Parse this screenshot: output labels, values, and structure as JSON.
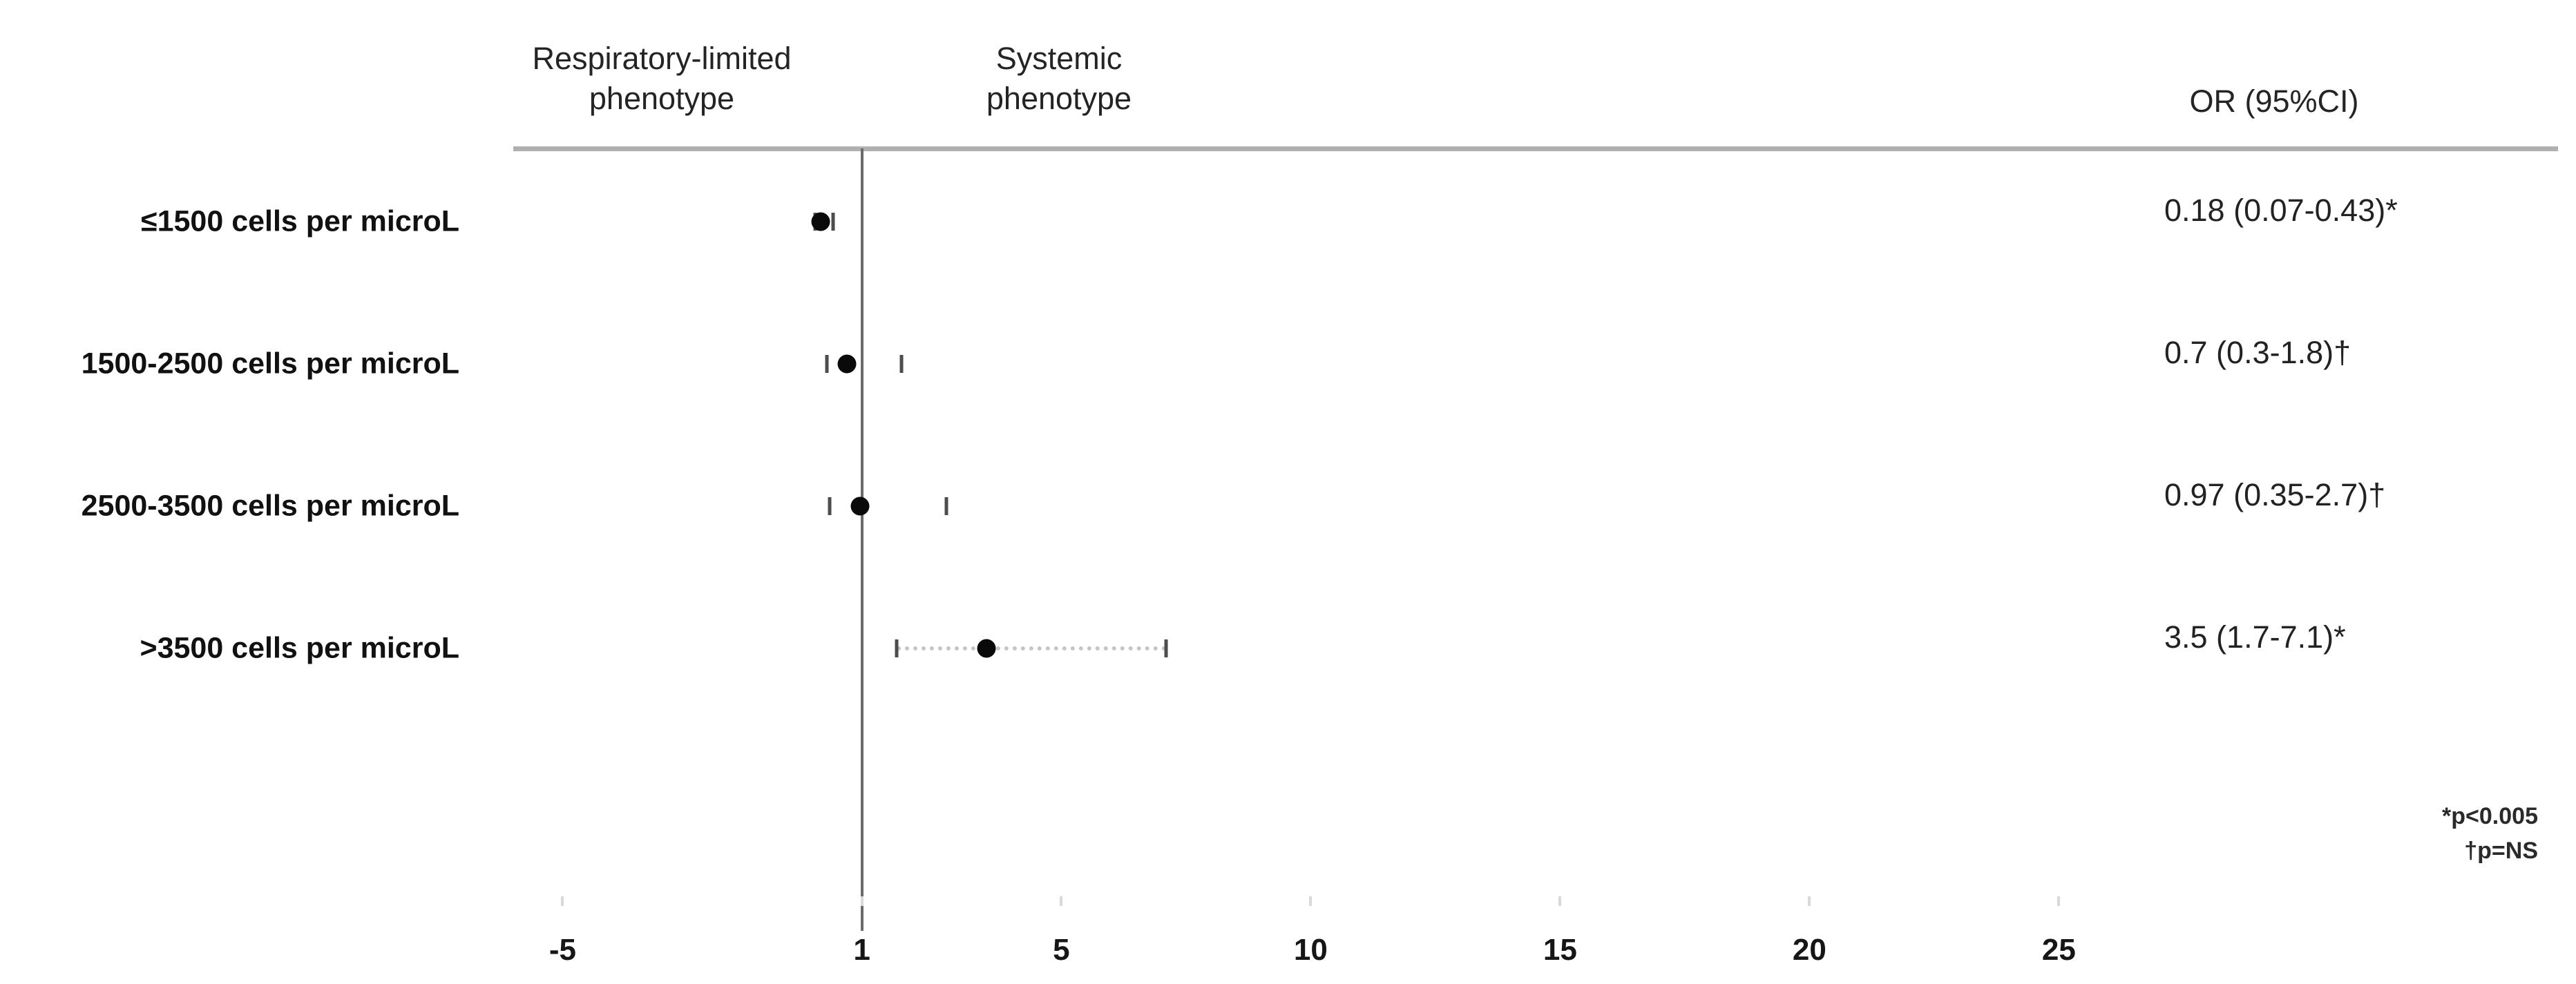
{
  "columns": {
    "left_phenotype": {
      "line1": "Respiratory-limited",
      "line2": "phenotype"
    },
    "right_phenotype": {
      "line1": "Systemic",
      "line2": "phenotype"
    },
    "or_header": "OR (95%CI)"
  },
  "chart_data": {
    "type": "scatter",
    "subtype": "forest-plot",
    "title": "",
    "xlabel": "",
    "ylabel": "",
    "grid": false,
    "legend_position": "none",
    "reference_line_x": 1,
    "xlim": [
      -7.5,
      27
    ],
    "x_ticks": [
      -5,
      1,
      5,
      10,
      15,
      20,
      25
    ],
    "categories": [
      "≤1500 cells per microL",
      "1500-2500 cells per microL",
      "2500-3500 cells per microL",
      ">3500 cells per microL"
    ],
    "rows": [
      {
        "label": "≤1500 cells per microL",
        "or": 0.18,
        "ci_low": 0.07,
        "ci_high": 0.43,
        "or_text": "0.18 (0.07-0.43)*",
        "significance": "*",
        "connector_visible": false
      },
      {
        "label": "1500-2500 cells per microL",
        "or": 0.7,
        "ci_low": 0.3,
        "ci_high": 1.8,
        "or_text": "0.7 (0.3-1.8)†",
        "significance": "†",
        "connector_visible": false
      },
      {
        "label": "2500-3500 cells per microL",
        "or": 0.97,
        "ci_low": 0.35,
        "ci_high": 2.7,
        "or_text": "0.97 (0.35-2.7)†",
        "significance": "†",
        "connector_visible": false
      },
      {
        "label": ">3500 cells per microL",
        "or": 3.5,
        "ci_low": 1.7,
        "ci_high": 7.1,
        "or_text": "3.5 (1.7-7.1)*",
        "significance": "*",
        "connector_visible": true
      }
    ]
  },
  "footnotes": [
    "*p<0.005",
    "†p=NS"
  ],
  "colors": {
    "marker": "#0a0a0a",
    "reference_line": "#6b6b6b",
    "top_rule": "#b0b0b0",
    "ci_tick": "#4d4d4d",
    "connector": "#c5c5c5",
    "text": "#1f1f1f"
  }
}
